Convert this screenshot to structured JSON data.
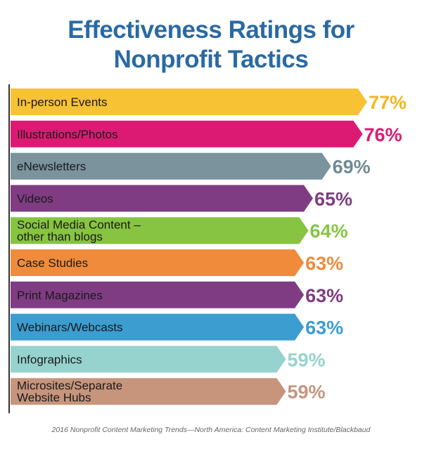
{
  "title_lines": [
    "Effectiveness Ratings for",
    "Nonprofit Tactics"
  ],
  "source": "2016 Nonprofit Content Marketing Trends—North America: Content Marketing Institute/Blackbaud",
  "colors": {
    "title": "#2a6aa3",
    "axis": "#333333",
    "bar_text": "#1a1a1a"
  },
  "chart_data": {
    "type": "bar",
    "orientation": "horizontal",
    "title": "Effectiveness Ratings for Nonprofit Tactics",
    "value_suffix": "%",
    "xlim": [
      0,
      100
    ],
    "grid": false,
    "legend": "none",
    "categories": [
      "In-person Events",
      "Illustrations/Photos",
      "eNewsletters",
      "Videos",
      "Social Media Content – other than blogs",
      "Case Studies",
      "Print Magazines",
      "Webinars/Webcasts",
      "Infographics",
      "Microsites/Separate Website Hubs"
    ],
    "label_lines": [
      [
        "In-person Events"
      ],
      [
        "Illustrations/Photos"
      ],
      [
        "eNewsletters"
      ],
      [
        "Videos"
      ],
      [
        "Social Media Content –",
        "other than blogs"
      ],
      [
        "Case Studies"
      ],
      [
        "Print Magazines"
      ],
      [
        "Webinars/Webcasts"
      ],
      [
        "Infographics"
      ],
      [
        "Microsites/Separate",
        "Website Hubs"
      ]
    ],
    "values": [
      77,
      76,
      69,
      65,
      64,
      63,
      63,
      63,
      59,
      59
    ],
    "value_labels": [
      "77%",
      "76%",
      "69%",
      "65%",
      "64%",
      "63%",
      "63%",
      "63%",
      "59%",
      "59%"
    ],
    "bar_colors": [
      "#f7c234",
      "#dc1a74",
      "#7a939d",
      "#7f3c83",
      "#86c441",
      "#ef8b3b",
      "#7f3c83",
      "#3b9dd0",
      "#96d3ce",
      "#c6957c"
    ],
    "label_colors": [
      "#f4b61f",
      "#dc1a74",
      "#6f8a94",
      "#7f3c83",
      "#86c441",
      "#ef8b3b",
      "#7f3c83",
      "#3b9dd0",
      "#96d3ce",
      "#c6957c"
    ]
  }
}
